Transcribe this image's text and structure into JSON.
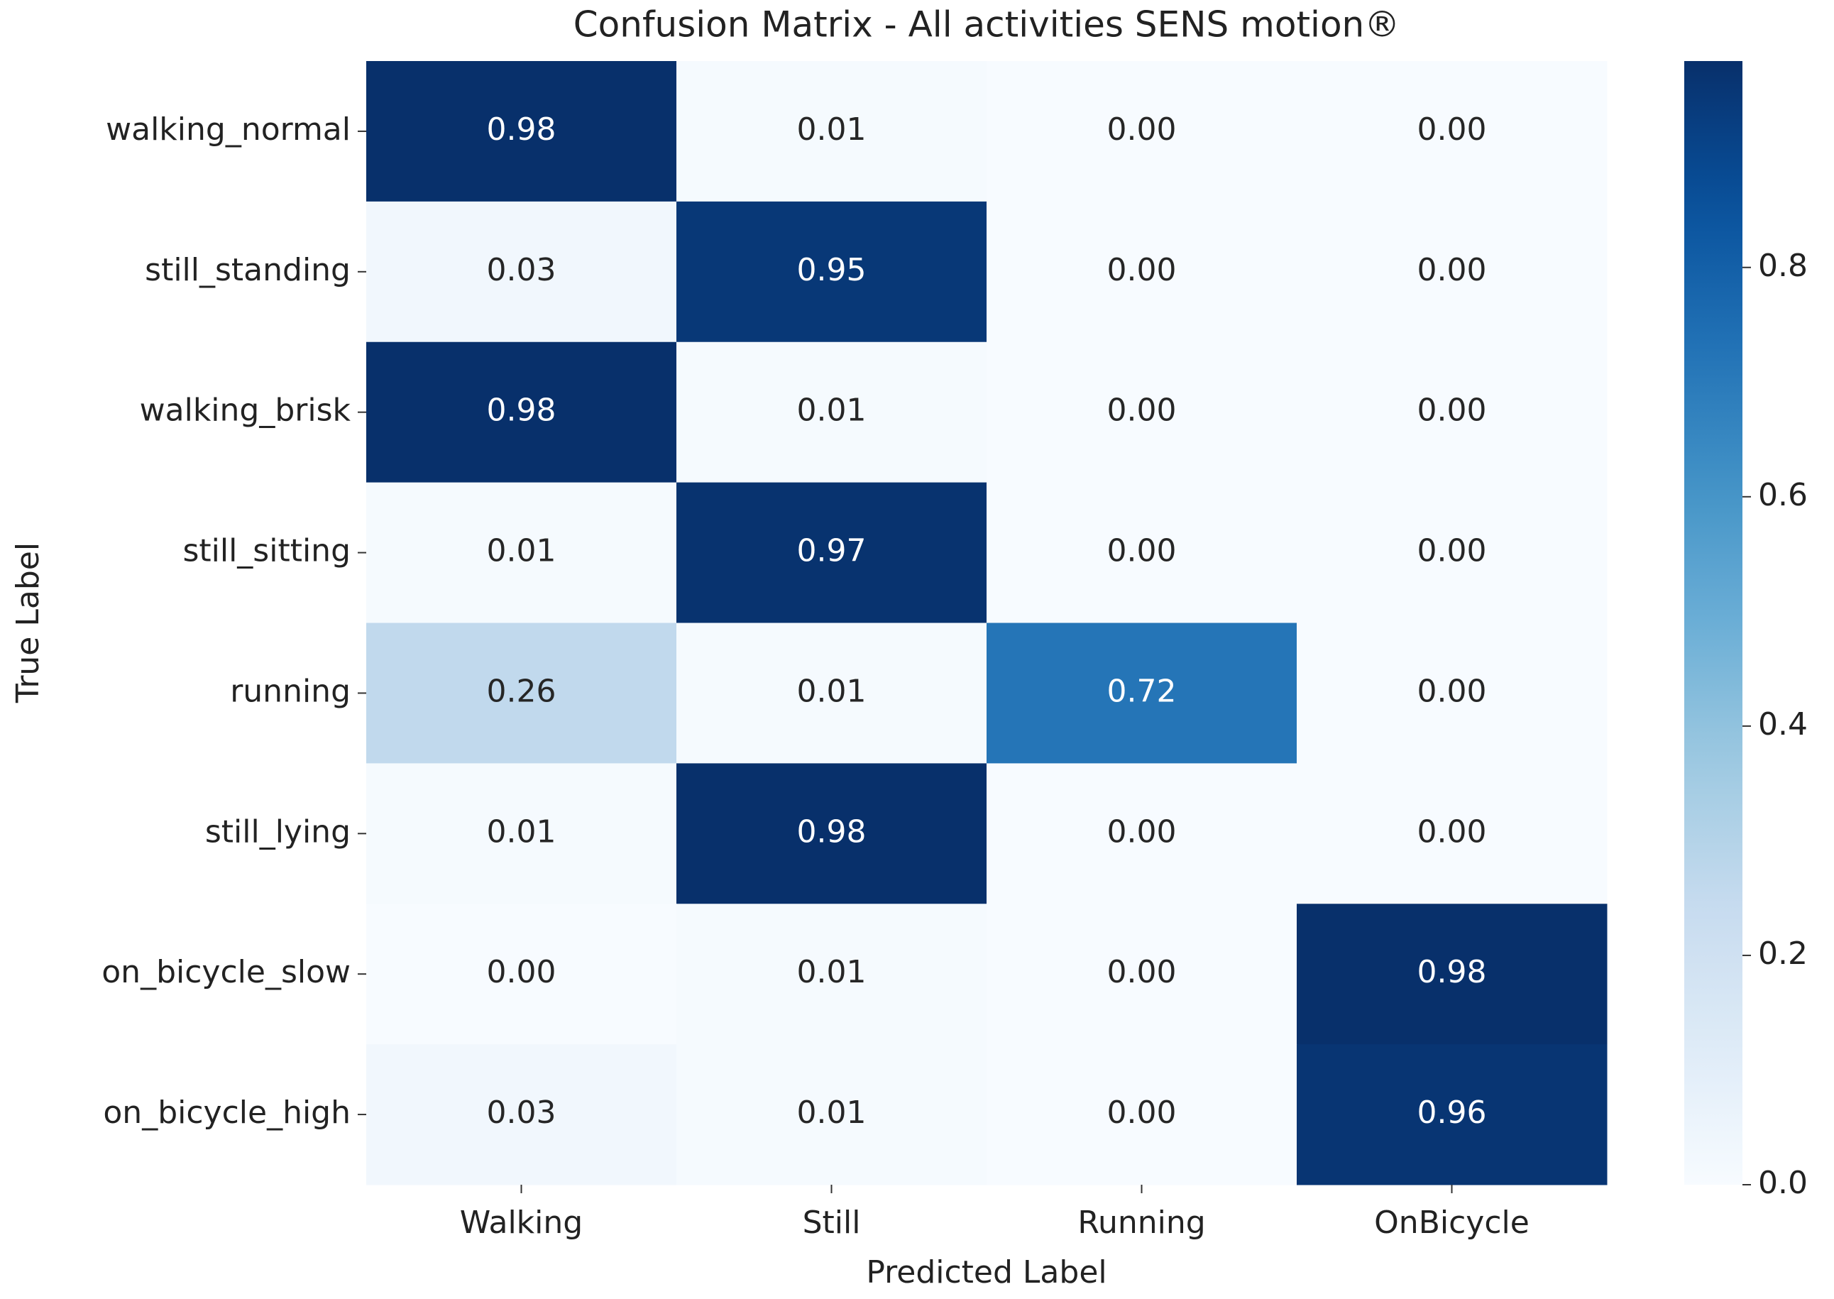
{
  "chart_data": {
    "type": "heatmap",
    "title": "Confusion Matrix - All activities SENS motion®",
    "x_label": "Predicted Label",
    "y_label": "True Label",
    "x_categories": [
      "Walking",
      "Still",
      "Running",
      "OnBicycle"
    ],
    "y_categories": [
      "walking_normal",
      "still_standing",
      "walking_brisk",
      "still_sitting",
      "running",
      "still_lying",
      "on_bicycle_slow",
      "on_bicycle_high"
    ],
    "values": [
      [
        0.98,
        0.01,
        0,
        0
      ],
      [
        0.03,
        0.95,
        0,
        0
      ],
      [
        0.98,
        0.01,
        0,
        0
      ],
      [
        0.01,
        0.97,
        0,
        0
      ],
      [
        0.26,
        0.01,
        0.72,
        0
      ],
      [
        0.01,
        0.98,
        0,
        0
      ],
      [
        0,
        0.01,
        0,
        0.98
      ],
      [
        0.03,
        0.01,
        0,
        0.96
      ]
    ],
    "value_labels": [
      [
        "0.98",
        "0.01",
        "0.00",
        "0.00"
      ],
      [
        "0.03",
        "0.95",
        "0.00",
        "0.00"
      ],
      [
        "0.98",
        "0.01",
        "0.00",
        "0.00"
      ],
      [
        "0.01",
        "0.97",
        "0.00",
        "0.00"
      ],
      [
        "0.26",
        "0.01",
        "0.72",
        "0.00"
      ],
      [
        "0.01",
        "0.98",
        "0.00",
        "0.00"
      ],
      [
        "0.00",
        "0.01",
        "0.00",
        "0.98"
      ],
      [
        "0.03",
        "0.01",
        "0.00",
        "0.96"
      ]
    ],
    "colormap": "Blues",
    "zlim": [
      0,
      0.98
    ],
    "zticks": [
      {
        "value": 0,
        "label": "0.0"
      },
      0.2,
      0.4,
      0.6,
      0.8
    ]
  }
}
